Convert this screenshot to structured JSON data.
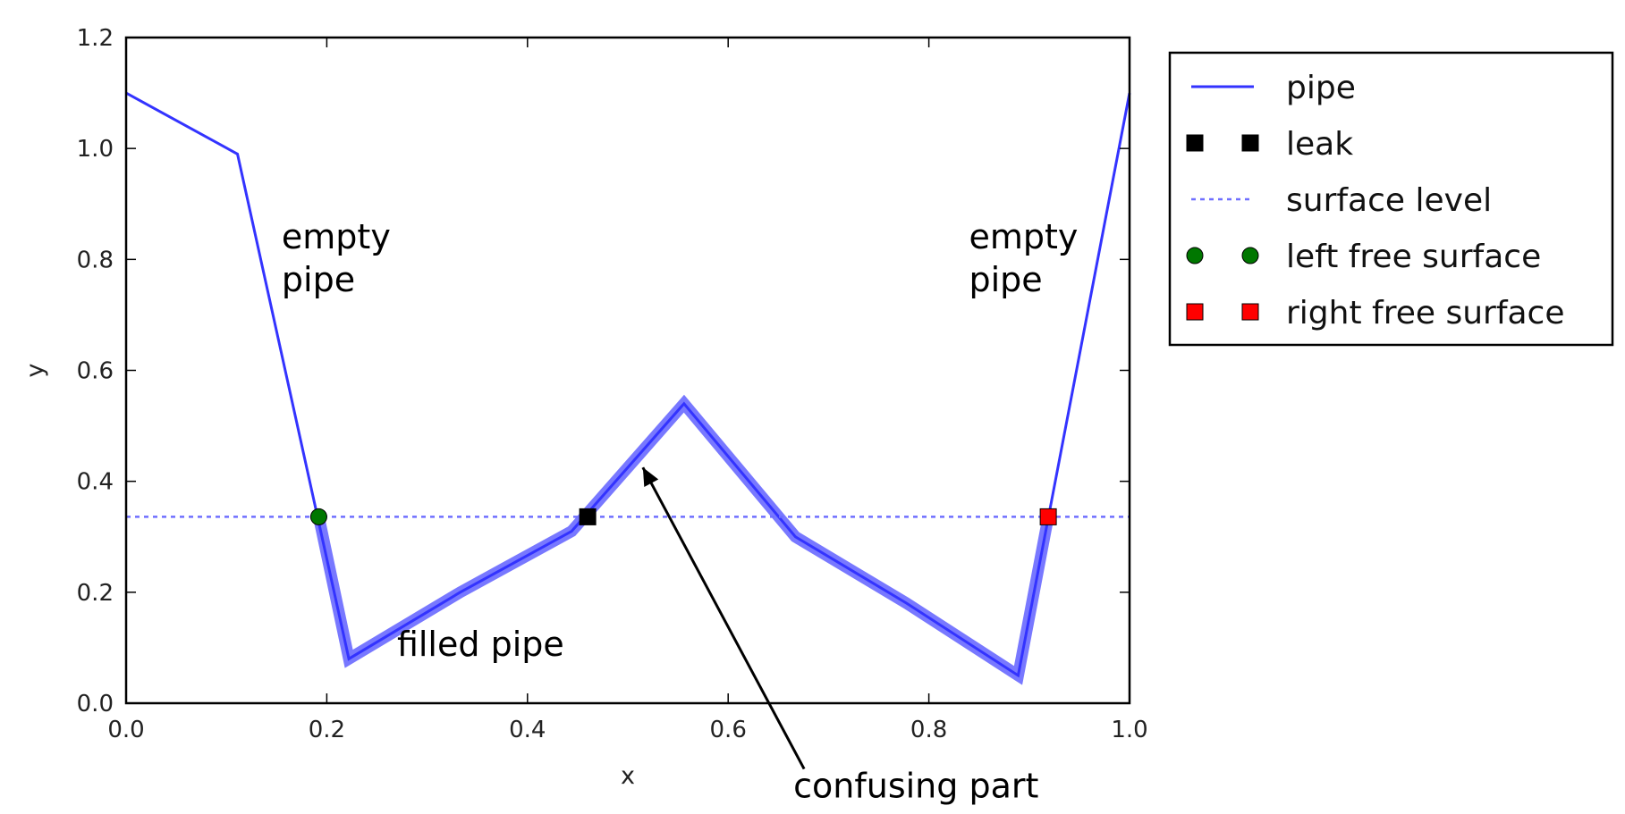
{
  "chart_data": {
    "type": "line",
    "xlabel": "x",
    "ylabel": "y",
    "xlim": [
      0.0,
      1.0
    ],
    "ylim": [
      0.0,
      1.2
    ],
    "x_ticks": [
      "0.0",
      "0.2",
      "0.4",
      "0.6",
      "0.8",
      "1.0"
    ],
    "y_ticks": [
      "0.0",
      "0.2",
      "0.4",
      "0.6",
      "0.8",
      "1.0",
      "1.2"
    ],
    "grid": false,
    "legend_position": "outside-right-top",
    "series": [
      {
        "name": "pipe",
        "style": "solid",
        "color": "#3333ff",
        "x": [
          0.0,
          0.111,
          0.222,
          0.333,
          0.444,
          0.556,
          0.667,
          0.778,
          0.889,
          1.0
        ],
        "y": [
          1.1,
          0.99,
          0.08,
          0.2,
          0.31,
          0.54,
          0.3,
          0.18,
          0.05,
          1.1
        ]
      },
      {
        "name": "leak",
        "style": "marker",
        "marker": "square",
        "color": "#000000",
        "x": [
          0.46
        ],
        "y": [
          0.336
        ]
      },
      {
        "name": "surface level",
        "style": "dotted",
        "color": "#6f6fff",
        "y": 0.336
      },
      {
        "name": "left free surface",
        "style": "marker",
        "marker": "circle",
        "color": "#007700",
        "x": [
          0.192
        ],
        "y": [
          0.336
        ]
      },
      {
        "name": "right free surface",
        "style": "marker",
        "marker": "square",
        "color": "#ff0000",
        "x": [
          0.919
        ],
        "y": [
          0.336
        ]
      }
    ],
    "filled_pipe": {
      "color": "#4444ff",
      "x": [
        0.192,
        0.222,
        0.333,
        0.444,
        0.556,
        0.667,
        0.778,
        0.889,
        0.919
      ],
      "y": [
        0.336,
        0.08,
        0.2,
        0.31,
        0.54,
        0.3,
        0.18,
        0.05,
        0.336
      ]
    },
    "annotations": [
      {
        "text_lines": [
          "empty",
          "pipe"
        ],
        "x": 0.155,
        "y": 0.82
      },
      {
        "text_lines": [
          "empty",
          "pipe"
        ],
        "x": 0.84,
        "y": 0.82
      },
      {
        "text_lines": [
          "filled pipe"
        ],
        "x": 0.27,
        "y": 0.085
      },
      {
        "text_lines": [
          "confusing part"
        ],
        "x": 0.665,
        "y": -0.17,
        "arrow_to": [
          0.515,
          0.425
        ]
      }
    ]
  }
}
